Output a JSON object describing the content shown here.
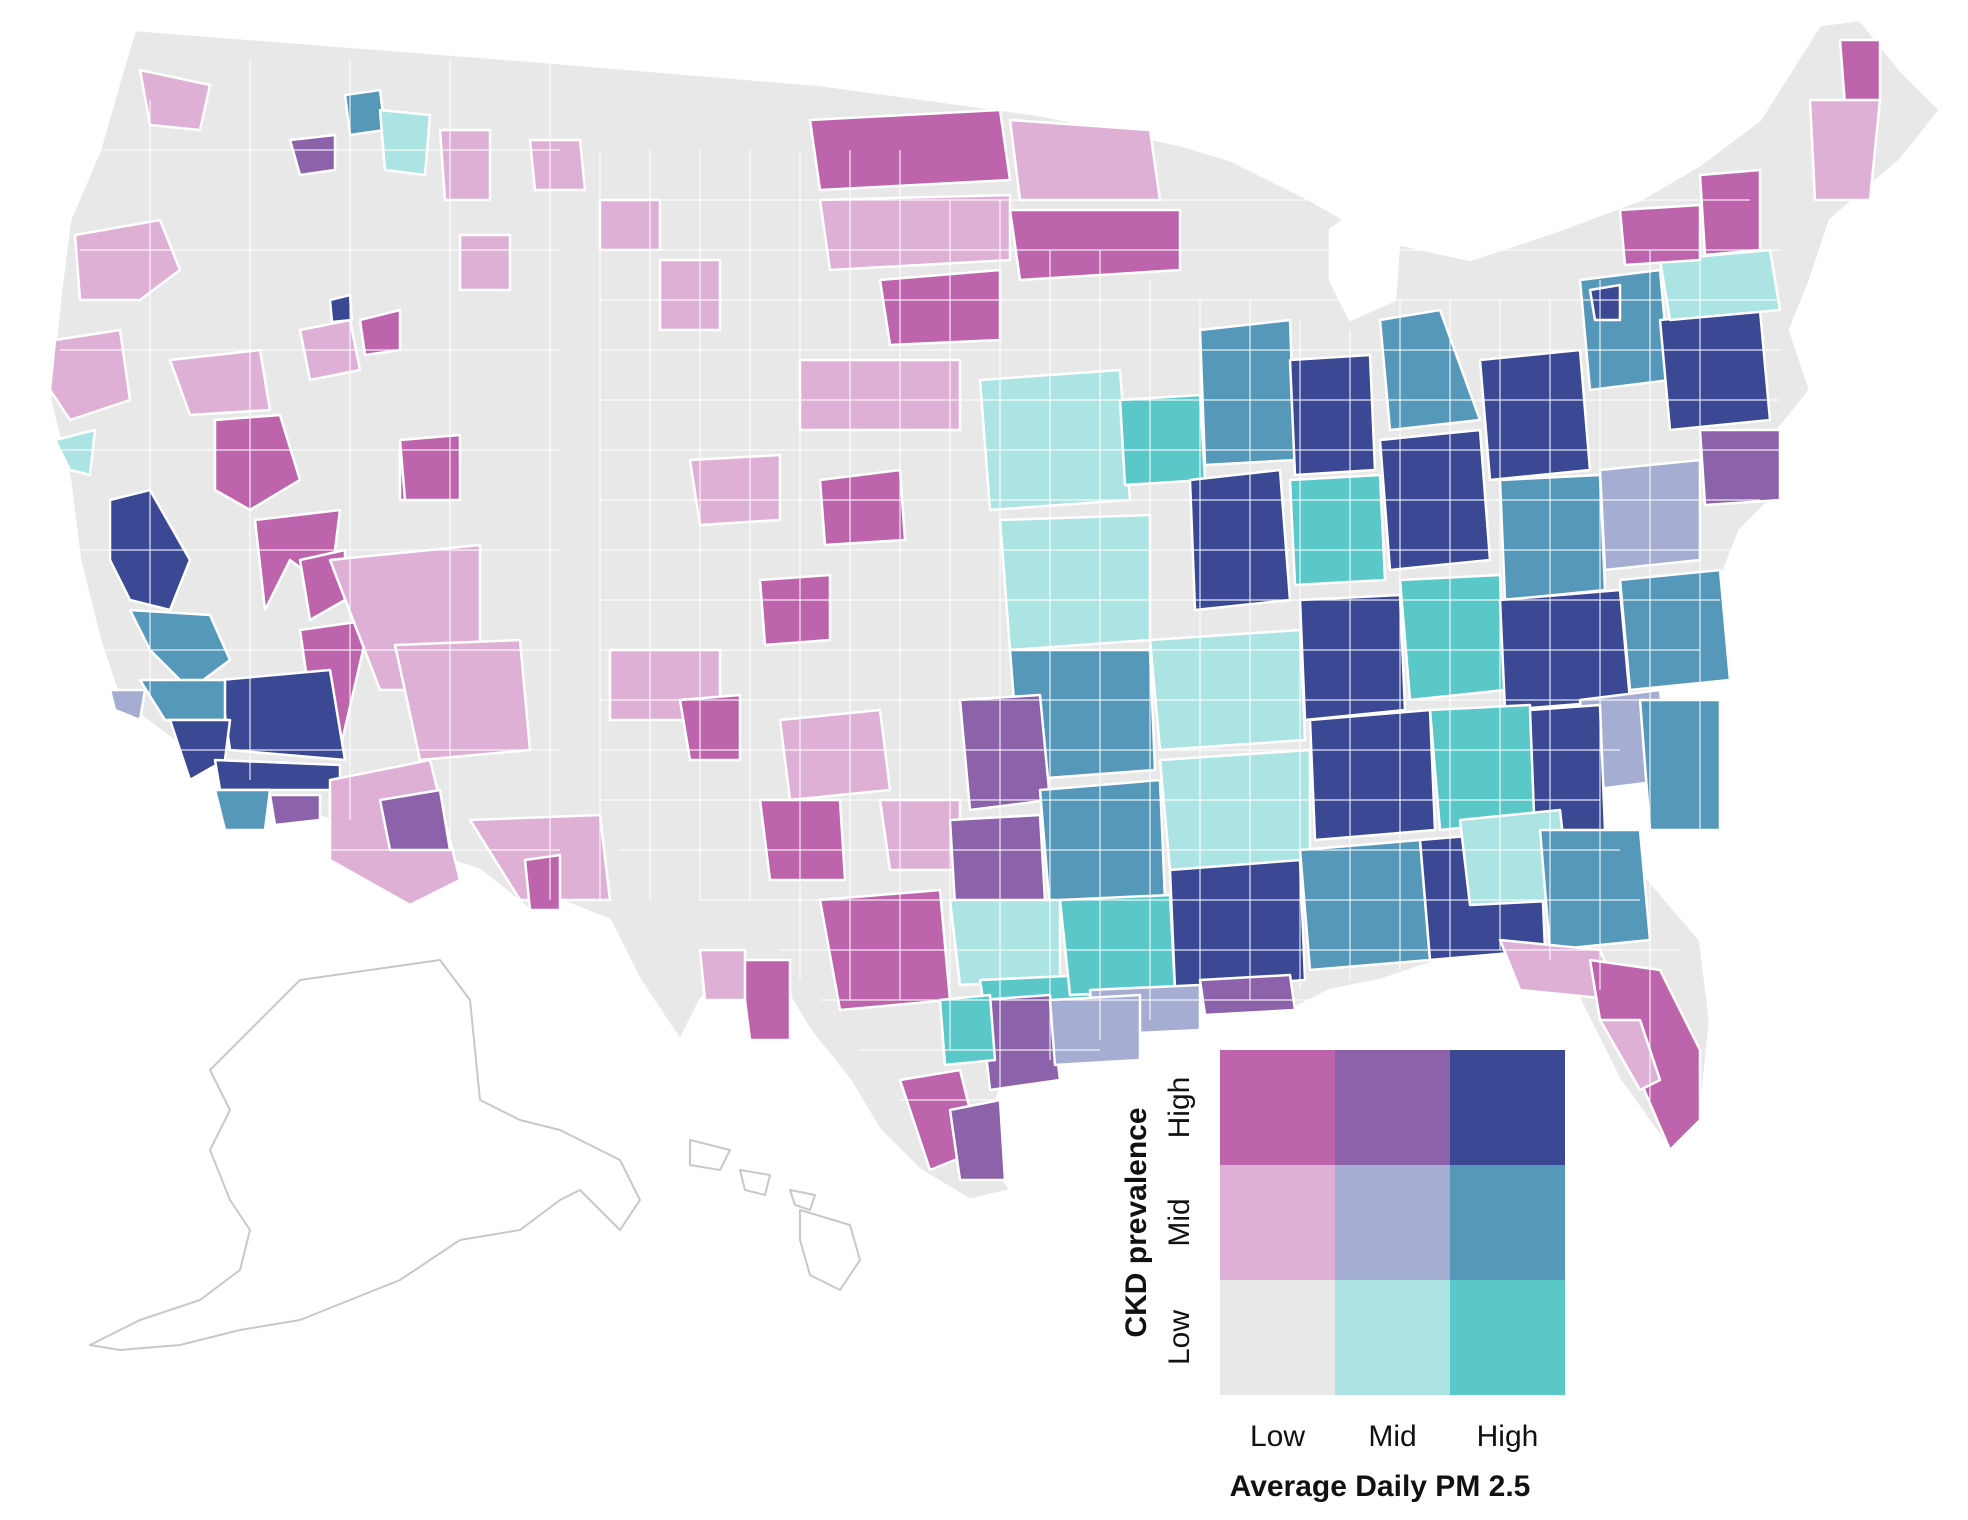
{
  "palette": {
    "low_low": "#e8e8e8",
    "mid_low": "#ace4e4",
    "high_low": "#5ac8c8",
    "low_mid": "#dfb0d6",
    "mid_mid": "#a5add3",
    "high_mid": "#5698b9",
    "low_high": "#be64ac",
    "mid_high": "#8c62aa",
    "high_high": "#3b4994",
    "outline": "#c8c8c8",
    "background": "#ffffff"
  },
  "legend": {
    "y_title": "CKD prevalence",
    "y_ticks": [
      "High",
      "Mid",
      "Low"
    ],
    "x_title": "Average Daily PM 2.5",
    "x_ticks": [
      "Low",
      "Mid",
      "High"
    ],
    "grid": [
      [
        "low_high",
        "mid_high",
        "high_high"
      ],
      [
        "low_mid",
        "mid_mid",
        "high_mid"
      ],
      [
        "low_low",
        "mid_low",
        "high_low"
      ]
    ]
  },
  "map_regions": [
    {
      "name": "alaska-outline",
      "class": "none"
    },
    {
      "name": "hawaii-outline",
      "class": "none"
    }
  ]
}
